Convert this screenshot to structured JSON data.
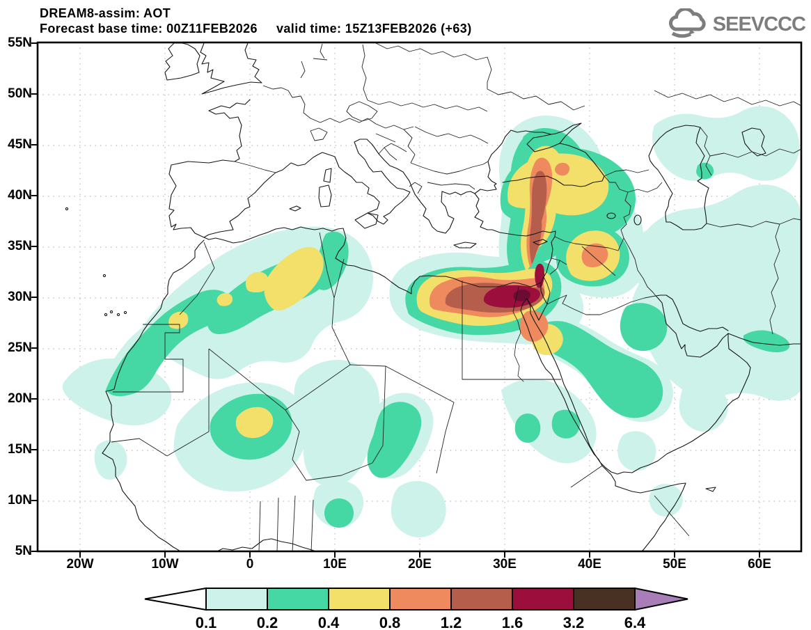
{
  "header": {
    "title": "DREAM8-assim: AOT",
    "base_time_label": "Forecast base time: 00Z11FEB2026",
    "valid_time_label": "valid time: 15Z13FEB2026 (+63)"
  },
  "logo": {
    "text": "SEEVCCC",
    "color": "#7d7d7d",
    "icon": "cloud-icon"
  },
  "map": {
    "x_ticks": [
      "20W",
      "10W",
      "0",
      "10E",
      "20E",
      "30E",
      "40E",
      "50E",
      "60E"
    ],
    "y_ticks": [
      "55N",
      "50N",
      "45N",
      "40N",
      "35N",
      "30N",
      "25N",
      "20N",
      "15N",
      "10N",
      "5N"
    ]
  },
  "colorbar": {
    "levels": [
      "0.1",
      "0.2",
      "0.4",
      "0.8",
      "1.2",
      "1.6",
      "3.2",
      "6.4"
    ],
    "colors": [
      "#cdf2ea",
      "#45d7a4",
      "#f3e06b",
      "#ef8a5f",
      "#b65e4c",
      "#9c0f3d",
      "#483023"
    ],
    "arrow_left_color": "#ffffff",
    "arrow_right_color": "#a87db8",
    "outline_color": "#000000"
  },
  "chart_data": {
    "type": "filled-contour-map",
    "variable": "AOT (aerosol optical thickness)",
    "model": "DREAM8-assim",
    "forecast_base_time": "00Z11FEB2026",
    "valid_time": "15Z13FEB2026 (+63)",
    "lead_hours": 63,
    "extent": {
      "lon_min": -25,
      "lon_max": 65,
      "lat_min": 5,
      "lat_max": 55
    },
    "grid": {
      "lat_step_deg": 5,
      "lon_step_deg": 10,
      "style": "dotted"
    },
    "contour_levels": [
      0.1,
      0.2,
      0.4,
      0.8,
      1.2,
      1.6,
      3.2,
      6.4
    ],
    "core_color": "#6c0c34",
    "features": [
      {
        "name": "egypt-levant-dust-plume",
        "center_lonlat": [
          32,
          30.5
        ],
        "max_aot": "1.6-3.2",
        "extent": "coastal Egypt 27E-35E into Israel/Lebanon, AOT 1.2-1.6 band with darker core near Nile delta"
      },
      {
        "name": "plume-arm-north",
        "center_lonlat": [
          34,
          39
        ],
        "max_aot": "1.2",
        "extent": "narrow band through Cyprus and central Turkey up to Black Sea and Crimea, yellow 0.4-0.8 widening over Turkey"
      },
      {
        "name": "ne-turkey-spot",
        "center_lonlat": [
          36.5,
          42.5
        ],
        "max_aot": "0.8-1.2"
      },
      {
        "name": "syria-n-iraq-max",
        "center_lonlat": [
          40,
          34.5
        ],
        "max_aot": "0.8-1.2",
        "extent": "yellow blob 38E-42E 33N-37N with orange core"
      },
      {
        "name": "se-arm-red-sea-saudi",
        "center_lonlat": [
          38,
          26
        ],
        "max_aot": "0.4",
        "extent": "green/cyan band from Sinai across NW Saudi Arabia to 48E"
      },
      {
        "name": "atlas-plume-nw-africa",
        "center_lonlat": [
          4,
          32
        ],
        "max_aot": "0.4-0.8",
        "extent": "yellow cores over N Algeria within green band along Atlas and Moroccan coast"
      },
      {
        "name": "w-sahara-coast-spot",
        "center_lonlat": [
          -8.5,
          28
        ],
        "max_aot": "0.4-0.8"
      },
      {
        "name": "mali-blob",
        "center_lonlat": [
          0.5,
          18
        ],
        "max_aot": "0.4-0.8"
      },
      {
        "name": "chad-band",
        "center_lonlat": [
          17.5,
          16.5
        ],
        "max_aot": "0.2-0.4"
      },
      {
        "name": "nigeria-spot",
        "center_lonlat": [
          10.5,
          9
        ],
        "max_aot": "0.2-0.4"
      },
      {
        "name": "red-sea-sudan-spots",
        "center_lonlat": [
          35,
          17.5
        ],
        "max_aot": "0.2-0.4"
      },
      {
        "name": "hormuz-iran-coast-band",
        "center_lonlat": [
          60,
          26
        ],
        "max_aot": "0.2-0.4"
      },
      {
        "name": "crimea-cap",
        "center_lonlat": [
          35,
          45
        ],
        "max_aot": "0.2-0.4"
      },
      {
        "name": "background-patches",
        "max_aot": "0.1-0.2",
        "extent": "widespread 0.1-0.2 over Sahara, Sahel, Arabia, Iraq, Iran, Caspian and Caucasus regions"
      }
    ]
  }
}
